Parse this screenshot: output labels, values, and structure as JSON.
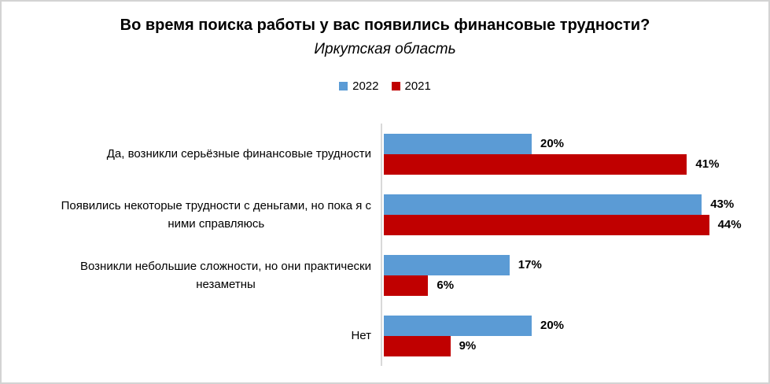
{
  "title": "Во время поиска работы у вас появились финансовые трудности?",
  "subtitle": "Иркутская область",
  "legend": {
    "items": [
      {
        "label": "2022",
        "color": "#5b9bd5"
      },
      {
        "label": "2021",
        "color": "#c00000"
      }
    ]
  },
  "colors": {
    "series_2022": "#5b9bd5",
    "series_2021": "#c00000",
    "axis_line": "#d9d9d9",
    "border": "#d3d3d3",
    "text": "#000000"
  },
  "chart_data": {
    "type": "bar",
    "orientation": "horizontal",
    "title": "Во время поиска работы у вас появились финансовые трудности?",
    "subtitle": "Иркутская область",
    "categories": [
      "Да, возникли серьёзные финансовые трудности",
      "Появились некоторые трудности с деньгами, но пока я с ними справляюсь",
      "Возникли небольшие сложности, но они практически незаметны",
      "Нет"
    ],
    "series": [
      {
        "name": "2022",
        "values": [
          20,
          43,
          17,
          20
        ]
      },
      {
        "name": "2021",
        "values": [
          41,
          44,
          6,
          9
        ]
      }
    ],
    "value_label_format": "percent",
    "axis_range": [
      0,
      50
    ],
    "grid": false,
    "legend_position": "top"
  },
  "rows": [
    {
      "label_line1": "Да, возникли серьёзные финансовые трудности",
      "label_line2": "",
      "v2022": 20,
      "v2021": 41,
      "l2022": "20%",
      "l2021": "41%"
    },
    {
      "label_line1": "Появились некоторые трудности с деньгами, но пока я с",
      "label_line2": "ними справляюсь",
      "v2022": 43,
      "v2021": 44,
      "l2022": "43%",
      "l2021": "44%"
    },
    {
      "label_line1": "Возникли небольшие сложности, но они практически",
      "label_line2": "незаметны",
      "v2022": 17,
      "v2021": 6,
      "l2022": "17%",
      "l2021": "6%"
    },
    {
      "label_line1": "Нет",
      "label_line2": "",
      "v2022": 20,
      "v2021": 9,
      "l2022": "20%",
      "l2021": "9%"
    }
  ]
}
